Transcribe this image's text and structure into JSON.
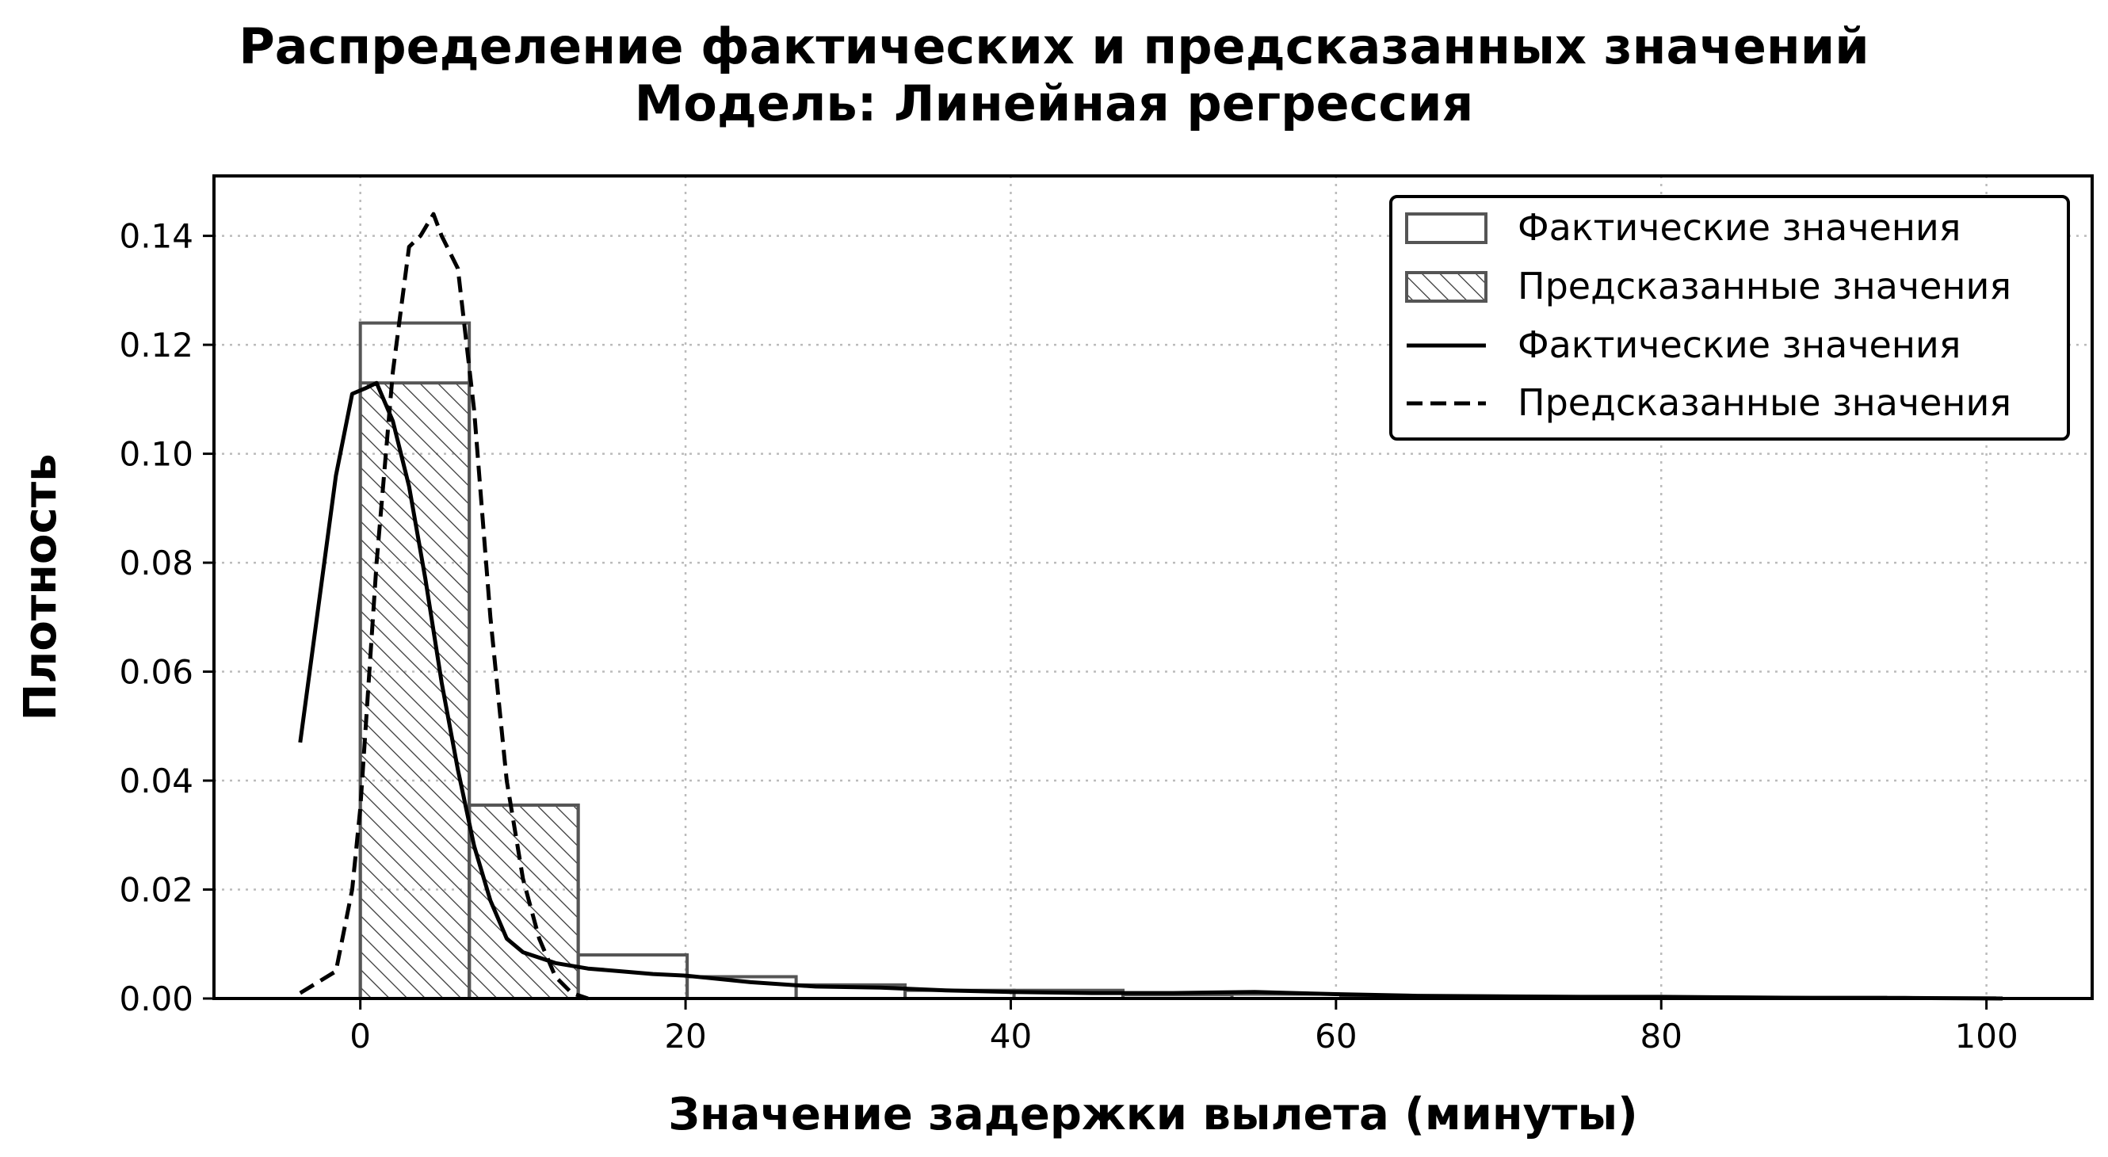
{
  "chart_data": {
    "type": "histogram",
    "title": [
      "Распределение фактических и предсказанных значений",
      "Модель: Линейная регрессия"
    ],
    "xlabel": "Значение задержки вылета (минуты)",
    "ylabel": "Плотность",
    "xlim": [
      -9,
      106.5
    ],
    "ylim": [
      0,
      0.151
    ],
    "x_ticks": [
      0,
      20,
      40,
      60,
      80,
      100
    ],
    "x_tick_labels": [
      "0",
      "20",
      "40",
      "60",
      "80",
      "100"
    ],
    "y_ticks": [
      0,
      0.02,
      0.04,
      0.06,
      0.08,
      0.1,
      0.12,
      0.14
    ],
    "y_tick_labels": [
      "0.00",
      "0.02",
      "0.04",
      "0.06",
      "0.08",
      "0.10",
      "0.12",
      "0.14"
    ],
    "grid": true,
    "legend_position": "top-right",
    "colors": {
      "bar_edge": "#555555",
      "hatch": "#333333",
      "line": "#000000",
      "grid": "#bbbbbb"
    },
    "legend": [
      {
        "label": "Фактические значения",
        "style": "bar-outline"
      },
      {
        "label": "Предсказанные значения",
        "style": "bar-hatched"
      },
      {
        "label": "Фактические значения",
        "style": "solid-line"
      },
      {
        "label": "Предсказанные значения",
        "style": "dashed-line"
      }
    ],
    "histograms": [
      {
        "name": "Фактические значения",
        "style": "outline",
        "bin_edges": [
          0,
          6.7,
          13.4,
          20.1,
          26.8,
          33.5,
          40.2,
          46.9,
          53.6,
          60.3,
          67,
          73.7,
          80.4,
          87.1,
          93.8,
          100.5
        ],
        "values": [
          0.124,
          0.0355,
          0.008,
          0.004,
          0.0025,
          0.0015,
          0.0015,
          0.0007,
          0.0008,
          0.0005,
          0.0003,
          0.0003,
          0.0002,
          0.0002,
          0.0001
        ]
      },
      {
        "name": "Предсказанные значения",
        "style": "hatched",
        "bin_edges": [
          0,
          6.7,
          13.4
        ],
        "values": [
          0.113,
          0.0355
        ]
      }
    ],
    "series": [
      {
        "name": "Фактические значения",
        "style": "solid",
        "x": [
          -3.7,
          -1.5,
          -0.5,
          0.3,
          1,
          2,
          3,
          4,
          5,
          6,
          7,
          8,
          9,
          10,
          12,
          14,
          16,
          18,
          20,
          24,
          28,
          32,
          36,
          40,
          45,
          50,
          55,
          60,
          65,
          70,
          75,
          80,
          85,
          90,
          95,
          101
        ],
        "y": [
          0.047,
          0.096,
          0.111,
          0.112,
          0.113,
          0.106,
          0.094,
          0.077,
          0.058,
          0.042,
          0.028,
          0.018,
          0.011,
          0.0085,
          0.0065,
          0.0055,
          0.005,
          0.0045,
          0.0042,
          0.003,
          0.0022,
          0.002,
          0.0015,
          0.0012,
          0.001,
          0.001,
          0.0012,
          0.0008,
          0.0005,
          0.0004,
          0.0003,
          0.0003,
          0.0002,
          0.0001,
          0.0001,
          0.0
        ]
      },
      {
        "name": "Предсказанные значения",
        "style": "dashed",
        "x": [
          -3.7,
          -1.5,
          -0.5,
          0,
          1,
          2,
          3,
          3.7,
          4.5,
          5,
          6,
          7,
          8,
          9,
          10,
          11,
          12,
          13,
          14
        ],
        "y": [
          0.001,
          0.005,
          0.02,
          0.035,
          0.08,
          0.115,
          0.138,
          0.14,
          0.144,
          0.14,
          0.134,
          0.108,
          0.07,
          0.04,
          0.022,
          0.011,
          0.004,
          0.001,
          0.0
        ]
      }
    ]
  }
}
